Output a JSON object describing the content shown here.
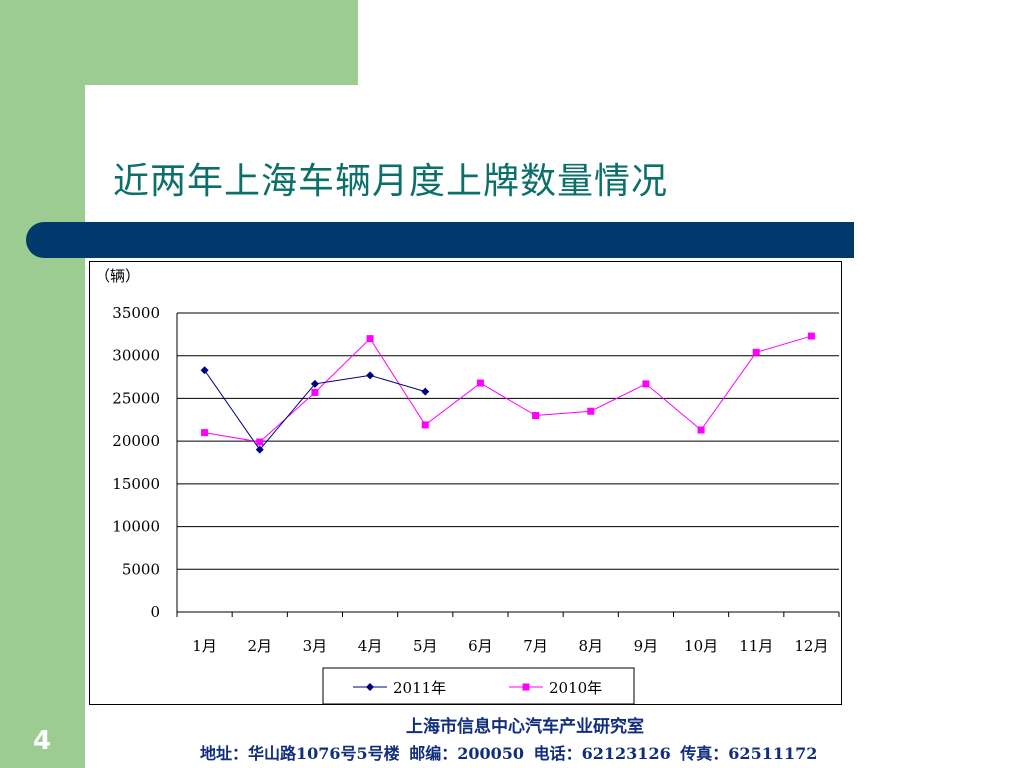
{
  "slide": {
    "title": "近两年上海车辆月度上牌数量情况",
    "page_number": "4"
  },
  "footer": {
    "org": "上海市信息中心汽车产业研究室",
    "address": "地址：华山路1076号5号楼",
    "postcode": "邮编：200050",
    "phone": "电话：62123126",
    "fax": "传真：62511172"
  },
  "colors": {
    "sidebar_green": "#9ccc92",
    "title_teal": "#0b6f6a",
    "bar_navy": "#003a6c",
    "series_2011": "#000080",
    "series_2010": "#ff00ff"
  },
  "chart_data": {
    "type": "line",
    "unit_label": "（辆）",
    "categories": [
      "1月",
      "2月",
      "3月",
      "4月",
      "5月",
      "6月",
      "7月",
      "8月",
      "9月",
      "10月",
      "11月",
      "12月"
    ],
    "ylim": [
      0,
      35000
    ],
    "yticks": [
      0,
      5000,
      10000,
      15000,
      20000,
      25000,
      30000,
      35000
    ],
    "grid": true,
    "legend_position": "bottom",
    "series": [
      {
        "name": "2011年",
        "color": "#000080",
        "marker": "diamond",
        "values": [
          28300,
          19000,
          26700,
          27700,
          25800,
          null,
          null,
          null,
          null,
          null,
          null,
          null
        ]
      },
      {
        "name": "2010年",
        "color": "#ff00ff",
        "marker": "square",
        "values": [
          21000,
          19900,
          25700,
          32000,
          21900,
          26800,
          23000,
          23500,
          26700,
          21300,
          30400,
          32300
        ]
      }
    ]
  }
}
